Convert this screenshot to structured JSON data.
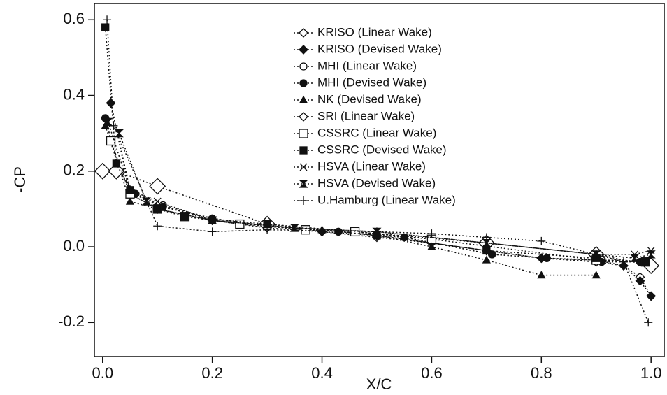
{
  "chart_data": {
    "type": "line",
    "x_label": "X/C",
    "y_label": "-CP",
    "xlim": [
      -0.015,
      1.024
    ],
    "ylim": [
      -0.29,
      0.643
    ],
    "xticks": [
      {
        "value": 0,
        "label": "0.0"
      },
      0.2,
      0.4,
      0.6,
      0.8,
      {
        "value": 1,
        "label": "1.0"
      }
    ],
    "yticks": [
      -0.2,
      {
        "value": 0,
        "label": "0.0"
      },
      0.2,
      0.4,
      0.6
    ],
    "grid": false,
    "legend": "upper-right",
    "line_style": "dotted",
    "series": [
      {
        "name": "KRISO (Linear Wake)",
        "color": "#111111",
        "marker": "diamond-open",
        "x": [
          0.015,
          0.05,
          0.1,
          0.2,
          0.3,
          0.4,
          0.5,
          0.6,
          0.7,
          0.8,
          0.9,
          0.95,
          0.98,
          1.0
        ],
        "values": [
          0.38,
          0.15,
          0.1,
          0.07,
          0.055,
          0.04,
          0.025,
          0.01,
          -0.01,
          -0.03,
          -0.04,
          -0.05,
          -0.08,
          -0.13
        ]
      },
      {
        "name": "KRISO (Devised Wake)",
        "color": "#111111",
        "marker": "diamond-filled",
        "x": [
          0.015,
          0.05,
          0.1,
          0.2,
          0.3,
          0.4,
          0.5,
          0.6,
          0.7,
          0.8,
          0.9,
          0.95,
          0.98,
          1.0
        ],
        "values": [
          0.38,
          0.14,
          0.1,
          0.07,
          0.05,
          0.04,
          0.03,
          0.01,
          -0.01,
          -0.03,
          -0.035,
          -0.05,
          -0.09,
          -0.13
        ]
      },
      {
        "name": "MHI (Linear Wake)",
        "color": "#111111",
        "marker": "circle-open",
        "x": [
          0.005,
          0.03,
          0.06,
          0.11,
          0.2,
          0.3,
          0.43,
          0.55,
          0.71,
          0.81,
          0.91,
          0.98
        ],
        "values": [
          0.34,
          0.2,
          0.14,
          0.11,
          0.075,
          0.055,
          0.04,
          0.025,
          -0.02,
          -0.03,
          -0.035,
          -0.04
        ]
      },
      {
        "name": "MHI (Devised Wake)",
        "color": "#111111",
        "marker": "circle-filled",
        "x": [
          0.005,
          0.03,
          0.06,
          0.11,
          0.2,
          0.3,
          0.43,
          0.55,
          0.71,
          0.81,
          0.91,
          0.98
        ],
        "values": [
          0.34,
          0.2,
          0.14,
          0.105,
          0.075,
          0.055,
          0.04,
          0.025,
          -0.02,
          -0.03,
          -0.04,
          -0.04
        ]
      },
      {
        "name": "NK (Devised Wake)",
        "color": "#111111",
        "marker": "triangle-filled",
        "x": [
          0.005,
          0.05,
          0.1,
          0.2,
          0.3,
          0.4,
          0.5,
          0.6,
          0.7,
          0.8,
          0.9
        ],
        "values": [
          0.32,
          0.12,
          0.1,
          0.07,
          0.055,
          0.045,
          0.03,
          0.0,
          -0.035,
          -0.075,
          -0.075
        ]
      },
      {
        "name": "SRI (Linear Wake)",
        "color": "#111111",
        "marker": "diamond-open-large",
        "x": [
          0,
          0.025,
          0.1,
          0.3,
          0.7,
          0.9,
          1.0
        ],
        "values": [
          0.2,
          0.2,
          0.16,
          0.06,
          0.01,
          -0.02,
          -0.05
        ]
      },
      {
        "name": "CSSRC (Linear Wake)",
        "color": "#111111",
        "marker": "square-open",
        "x": [
          0.015,
          0.05,
          0.1,
          0.15,
          0.25,
          0.37,
          0.46,
          0.6,
          0.9,
          0.99
        ],
        "values": [
          0.28,
          0.14,
          0.1,
          0.08,
          0.06,
          0.045,
          0.04,
          0.02,
          -0.035,
          -0.04
        ]
      },
      {
        "name": "CSSRC (Devised Wake)",
        "color": "#111111",
        "marker": "square-filled",
        "x": [
          0.005,
          0.025,
          0.05,
          0.1,
          0.15,
          0.3,
          0.5,
          0.7,
          0.9,
          0.99
        ],
        "values": [
          0.58,
          0.22,
          0.15,
          0.1,
          0.08,
          0.06,
          0.03,
          -0.01,
          -0.03,
          -0.04
        ]
      },
      {
        "name": "HSVA (Linear Wake)",
        "color": "#111111",
        "marker": "x",
        "x": [
          0.01,
          0.05,
          0.1,
          0.2,
          0.35,
          0.5,
          0.7,
          0.9,
          0.97,
          1.0
        ],
        "values": [
          0.33,
          0.15,
          0.12,
          0.07,
          0.05,
          0.04,
          0.01,
          -0.02,
          -0.02,
          -0.01
        ]
      },
      {
        "name": "HSVA (Devised Wake)",
        "color": "#111111",
        "marker": "hourglass",
        "x": [
          0.01,
          0.03,
          0.08,
          0.2,
          0.35,
          0.5,
          0.7,
          0.9,
          0.97,
          1.0
        ],
        "values": [
          0.33,
          0.3,
          0.12,
          0.07,
          0.05,
          0.04,
          0.01,
          -0.02,
          -0.03,
          -0.02
        ]
      },
      {
        "name": "U.Hamburg (Linear Wake)",
        "color": "#111111",
        "marker": "plus",
        "x": [
          0.008,
          0.02,
          0.1,
          0.2,
          0.3,
          0.5,
          0.6,
          0.7,
          0.8,
          0.9,
          0.95,
          0.995
        ],
        "values": [
          0.6,
          0.32,
          0.055,
          0.04,
          0.045,
          0.04,
          0.035,
          0.025,
          0.015,
          -0.02,
          -0.04,
          -0.2
        ]
      }
    ]
  }
}
